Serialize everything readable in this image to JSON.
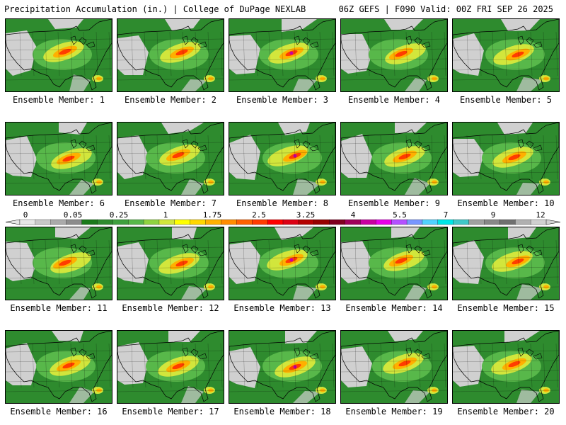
{
  "header": {
    "title_left": "Precipitation Accumulation (in.) | College of DuPage NEXLAB",
    "title_right": "06Z GEFS | F090 Valid: 00Z FRI SEP 26 2025"
  },
  "colorbar": {
    "labels": [
      "0",
      "0.05",
      "0.25",
      "1",
      "1.75",
      "2.5",
      "3.25",
      "4",
      "5.5",
      "7",
      "9",
      "12"
    ],
    "colors": [
      "#e6e6e6",
      "#c8c8c8",
      "#aaaaaa",
      "#8c8c8c",
      "#1a7a1a",
      "#2e8b2e",
      "#3ea03e",
      "#58b84a",
      "#8fd240",
      "#d2e63c",
      "#ffff00",
      "#ffd700",
      "#ffb000",
      "#ff8c00",
      "#ff6000",
      "#ff3c00",
      "#ff0000",
      "#dc0014",
      "#b40000",
      "#960000",
      "#800020",
      "#a0005a",
      "#c800a0",
      "#e600e6",
      "#b450ff",
      "#7896ff",
      "#50d2ff",
      "#00e6e6",
      "#40c8c8",
      "#a0a0a0",
      "#888888",
      "#707070",
      "#b0b0b0",
      "#d0d0d0"
    ]
  },
  "map_colors": {
    "land": "#2e8b2e",
    "dry": "#d0d0d0",
    "light": "#58b84a",
    "moderate": "#d2e63c",
    "heavy": "#ffb000",
    "very_heavy": "#ff3c00",
    "extreme": "#c800a0",
    "ocean": "#ffffff"
  },
  "panels": [
    {
      "label": "Ensemble Member: 1",
      "extreme": false
    },
    {
      "label": "Ensemble Member: 2",
      "extreme": false
    },
    {
      "label": "Ensemble Member: 3",
      "extreme": true
    },
    {
      "label": "Ensemble Member: 4",
      "extreme": false
    },
    {
      "label": "Ensemble Member: 5",
      "extreme": false
    },
    {
      "label": "Ensemble Member: 6",
      "extreme": false
    },
    {
      "label": "Ensemble Member: 7",
      "extreme": false
    },
    {
      "label": "Ensemble Member: 8",
      "extreme": true
    },
    {
      "label": "Ensemble Member: 9",
      "extreme": false
    },
    {
      "label": "Ensemble Member: 10",
      "extreme": false
    },
    {
      "label": "Ensemble Member: 11",
      "extreme": false
    },
    {
      "label": "Ensemble Member: 12",
      "extreme": false
    },
    {
      "label": "Ensemble Member: 13",
      "extreme": true
    },
    {
      "label": "Ensemble Member: 14",
      "extreme": false
    },
    {
      "label": "Ensemble Member: 15",
      "extreme": false
    },
    {
      "label": "Ensemble Member: 16",
      "extreme": false
    },
    {
      "label": "Ensemble Member: 17",
      "extreme": false
    },
    {
      "label": "Ensemble Member: 18",
      "extreme": true
    },
    {
      "label": "Ensemble Member: 19",
      "extreme": false
    },
    {
      "label": "Ensemble Member: 20",
      "extreme": false
    }
  ]
}
